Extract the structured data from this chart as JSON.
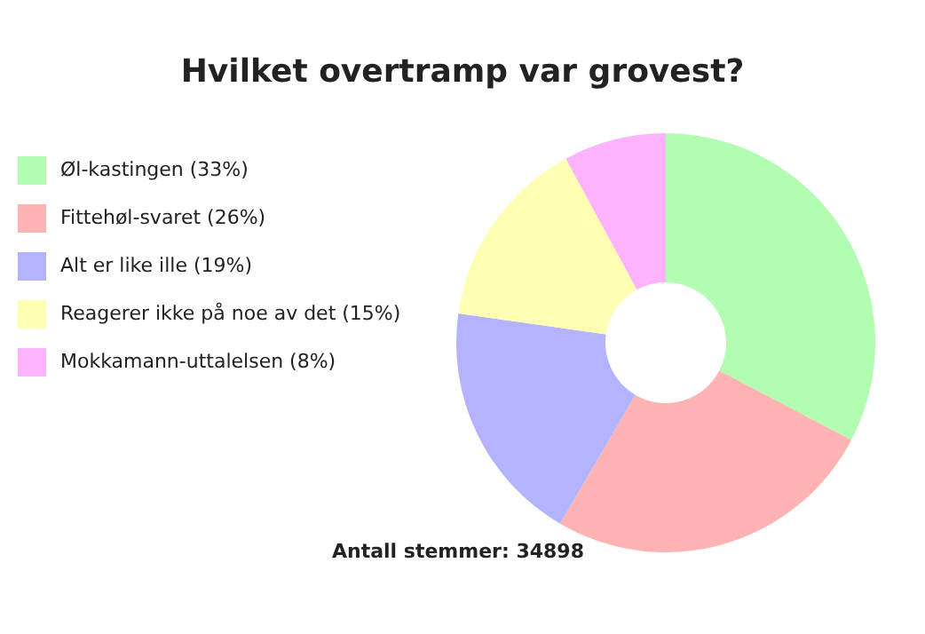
{
  "chart_data": {
    "type": "donut",
    "title": "Hvilket overtramp var grovest?",
    "categories": [
      "Øl-kastingen (33%)",
      "Fittehøl-svaret (26%)",
      "Alt er like ille (19%)",
      "Reagerer ikke på noe av det (15%)",
      "Mokkamann-uttalelsen (8%)"
    ],
    "values": [
      33,
      26,
      19,
      15,
      8
    ],
    "colors": [
      "#b3fdb3",
      "#ffb3b3",
      "#b3b3ff",
      "#ffffb3",
      "#ffb3ff"
    ],
    "legend": "left",
    "annotations": [
      "Antall stemmer: 34898"
    ]
  }
}
